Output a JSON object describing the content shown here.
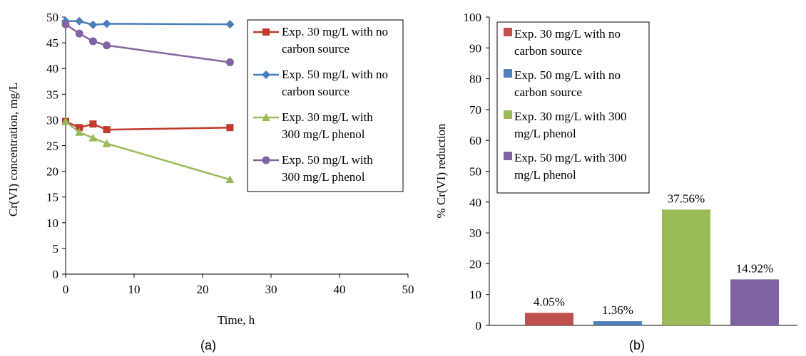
{
  "chart_data": [
    {
      "type": "line",
      "caption": "(a)",
      "title": "",
      "xlabel": "Time, h",
      "ylabel": "Cr(VI) concentration, mg/L",
      "xlim": [
        0,
        50
      ],
      "ylim": [
        0,
        50
      ],
      "xticks": [
        "0",
        "10",
        "20",
        "30",
        "40",
        "50"
      ],
      "yticks": [
        "0",
        "5",
        "10",
        "15",
        "20",
        "25",
        "30",
        "35",
        "40",
        "45",
        "50"
      ],
      "grid": false,
      "legend_position": "right",
      "series": [
        {
          "name_lines": [
            "Exp. 30 mg/L with no",
            "carbon source"
          ],
          "color": "#c0392b",
          "marker": "square",
          "points": [
            [
              0,
              29.7
            ],
            [
              2,
              28.5
            ],
            [
              4,
              29.2
            ],
            [
              6,
              28.1
            ],
            [
              24,
              28.5
            ]
          ]
        },
        {
          "name_lines": [
            "Exp. 50 mg/L with no",
            "carbon source"
          ],
          "color": "#4a7ebb",
          "marker": "diamond",
          "points": [
            [
              0,
              49.2
            ],
            [
              2,
              49.2
            ],
            [
              4,
              48.5
            ],
            [
              6,
              48.7
            ],
            [
              24,
              48.6
            ]
          ]
        },
        {
          "name_lines": [
            "Exp. 30 mg/L with",
            "300 mg/L phenol"
          ],
          "color": "#9bbb59",
          "marker": "triangle",
          "points": [
            [
              0,
              29.7
            ],
            [
              2,
              27.6
            ],
            [
              4,
              26.5
            ],
            [
              6,
              25.4
            ],
            [
              24,
              18.4
            ]
          ]
        },
        {
          "name_lines": [
            "Exp. 50 mg/L with",
            "300 mg/L phenol"
          ],
          "color": "#8064a2",
          "marker": "circle",
          "points": [
            [
              0,
              48.6
            ],
            [
              2,
              46.8
            ],
            [
              4,
              45.3
            ],
            [
              6,
              44.5
            ],
            [
              24,
              41.2
            ]
          ]
        }
      ]
    },
    {
      "type": "bar",
      "caption": "(b)",
      "title": "",
      "xlabel": "",
      "ylabel": "% Cr(VI) reduction",
      "ylim": [
        0,
        100
      ],
      "yticks": [
        "0",
        "10",
        "20",
        "30",
        "40",
        "50",
        "60",
        "70",
        "80",
        "90",
        "100"
      ],
      "grid": false,
      "legend_position": "top-left",
      "series": [
        {
          "name_lines": [
            "Exp. 30 mg/L with no",
            "carbon source"
          ],
          "color": "#c0504d",
          "value": 4.05,
          "label": "4.05%"
        },
        {
          "name_lines": [
            "Exp. 50 mg/L with no",
            "carbon source"
          ],
          "color": "#4f81bd",
          "value": 1.36,
          "label": "1.36%"
        },
        {
          "name_lines": [
            "Exp. 30 mg/L with 300",
            "mg/L phenol"
          ],
          "color": "#9bbb59",
          "value": 37.56,
          "label": "37.56%"
        },
        {
          "name_lines": [
            "Exp. 50 mg/L with 300",
            "mg/L phenol"
          ],
          "color": "#8064a2",
          "value": 14.92,
          "label": "14.92%"
        }
      ]
    }
  ]
}
